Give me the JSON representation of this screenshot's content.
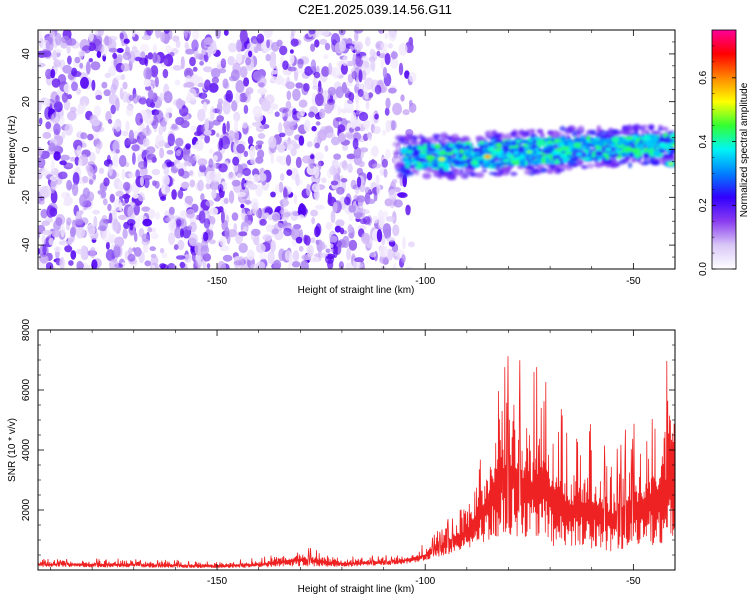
{
  "chart_data": [
    {
      "type": "heatmap",
      "title": "C2E1.2025.039.14.56.G11",
      "xlabel": "Height of straight line (km)",
      "ylabel": "Frequency (Hz)",
      "xlim": [
        -193,
        -40
      ],
      "ylim": [
        -50,
        50
      ],
      "x_ticks": [
        -150,
        -100,
        -50
      ],
      "x_tick_labels": [
        "-150",
        "-100",
        "-50"
      ],
      "y_ticks": [
        -40,
        -20,
        0,
        20,
        40
      ],
      "y_tick_labels": [
        "-40",
        "-20",
        "0",
        "20",
        "40"
      ],
      "colorbar": {
        "label": "Normalized spectral amplitude",
        "range": [
          0,
          0.75
        ],
        "ticks": [
          0,
          0.2,
          0.4,
          0.6
        ],
        "tick_labels": [
          "0.0",
          "0.2",
          "0.4",
          "0.6"
        ],
        "colormap": [
          "#ffffff",
          "#d9c7f7",
          "#8a3cf0",
          "#3200ff",
          "#0080ff",
          "#00f5f5",
          "#33ff33",
          "#ffff00",
          "#ff8800",
          "#ff0000",
          "#ff0099"
        ]
      },
      "noise_region": {
        "x_range": [
          -193,
          -103
        ],
        "y_range": [
          -50,
          50
        ],
        "level": 0.02
      },
      "signal_band": {
        "x": [
          -107,
          -95,
          -85,
          -75,
          -65,
          -55,
          -45,
          -40
        ],
        "center_frequency": [
          -3,
          -3,
          -2,
          -1,
          0,
          1,
          2,
          2
        ],
        "half_width": [
          5,
          6,
          6,
          6,
          6,
          5,
          5,
          5
        ]
      },
      "hot_spots": [
        {
          "x": -96,
          "y": -4,
          "amplitude": 0.55
        },
        {
          "x": -85,
          "y": -3,
          "amplitude": 0.62
        },
        {
          "x": -75,
          "y": -1,
          "amplitude": 0.48
        },
        {
          "x": -63,
          "y": -2,
          "amplitude": 0.38
        },
        {
          "x": -56,
          "y": 0,
          "amplitude": 0.4
        },
        {
          "x": -41,
          "y": -6,
          "amplitude": 0.5
        }
      ],
      "grid": false
    },
    {
      "type": "line",
      "xlabel": "Height of straight line (km)",
      "ylabel": "SNR (10 * v/v)",
      "xlim": [
        -193,
        -40
      ],
      "ylim": [
        0,
        8000
      ],
      "x_ticks": [
        -150,
        -100,
        -50
      ],
      "x_tick_labels": [
        "-150",
        "-100",
        "-50"
      ],
      "y_ticks": [
        2000,
        4000,
        6000,
        8000
      ],
      "y_tick_labels": [
        "2000",
        "4000",
        "6000",
        "8000"
      ],
      "color": "#ee2222",
      "envelope": {
        "x": [
          -193,
          -170,
          -150,
          -140,
          -130,
          -120,
          -110,
          -105,
          -100,
          -95,
          -90,
          -87,
          -84,
          -82,
          -80,
          -78,
          -75,
          -72,
          -70,
          -65,
          -60,
          -55,
          -50,
          -45,
          -42,
          -40
        ],
        "upper": [
          400,
          380,
          300,
          420,
          850,
          450,
          500,
          550,
          900,
          1700,
          2500,
          4000,
          5500,
          7200,
          8000,
          7500,
          6500,
          7000,
          6200,
          4800,
          5200,
          4200,
          5000,
          5800,
          7000,
          6800
        ],
        "lower": [
          100,
          80,
          60,
          80,
          120,
          100,
          150,
          200,
          300,
          500,
          700,
          900,
          1000,
          1100,
          1200,
          1000,
          900,
          1000,
          800,
          700,
          700,
          600,
          700,
          800,
          900,
          800
        ]
      },
      "grid": false
    }
  ]
}
